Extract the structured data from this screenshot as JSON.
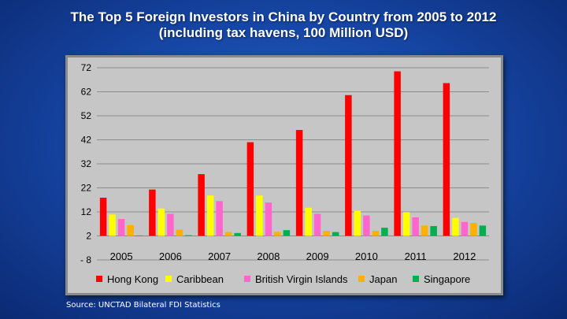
{
  "title_line1": "The Top 5 Foreign Investors in China by Country from 2005 to 2012",
  "title_line2": "(including tax havens, 100 Million USD)",
  "source": "Source: UNCTAD Bilateral FDI Statistics",
  "chart_data": {
    "type": "bar",
    "title": "The Top 5 Foreign Investors in China by Country from 2005 to 2012 (including tax havens, 100 Million USD)",
    "categories": [
      "2005",
      "2006",
      "2007",
      "2008",
      "2009",
      "2010",
      "2011",
      "2012"
    ],
    "ylim": [
      -8,
      72
    ],
    "yticks": [
      72,
      62,
      52,
      42,
      32,
      22,
      12,
      2,
      -8
    ],
    "ytick_labels": [
      "72",
      "62",
      "52",
      "42",
      "32",
      "22",
      "12",
      "2",
      "- 8"
    ],
    "baseline": 2,
    "grid": true,
    "legend_position": "bottom",
    "series": [
      {
        "name": "Hong Kong",
        "color": "#ff0000",
        "values": [
          17.9,
          21.3,
          27.7,
          41.0,
          46.1,
          60.6,
          70.5,
          65.6
        ]
      },
      {
        "name": "Caribbean",
        "color": "#ffff00",
        "values": [
          10.9,
          13.4,
          18.8,
          18.8,
          13.7,
          12.5,
          11.9,
          9.5
        ]
      },
      {
        "name": "British Virgin Islands",
        "color": "#ff66cc",
        "values": [
          9.0,
          11.2,
          16.5,
          15.9,
          11.2,
          10.5,
          9.7,
          7.8
        ]
      },
      {
        "name": "Japan",
        "color": "#ffb000",
        "values": [
          6.5,
          4.6,
          3.6,
          3.7,
          4.1,
          4.1,
          6.3,
          7.4
        ]
      },
      {
        "name": "Singapore",
        "color": "#00b050",
        "values": [
          2.2,
          2.3,
          3.2,
          4.4,
          3.6,
          5.4,
          6.1,
          6.3
        ]
      }
    ]
  }
}
